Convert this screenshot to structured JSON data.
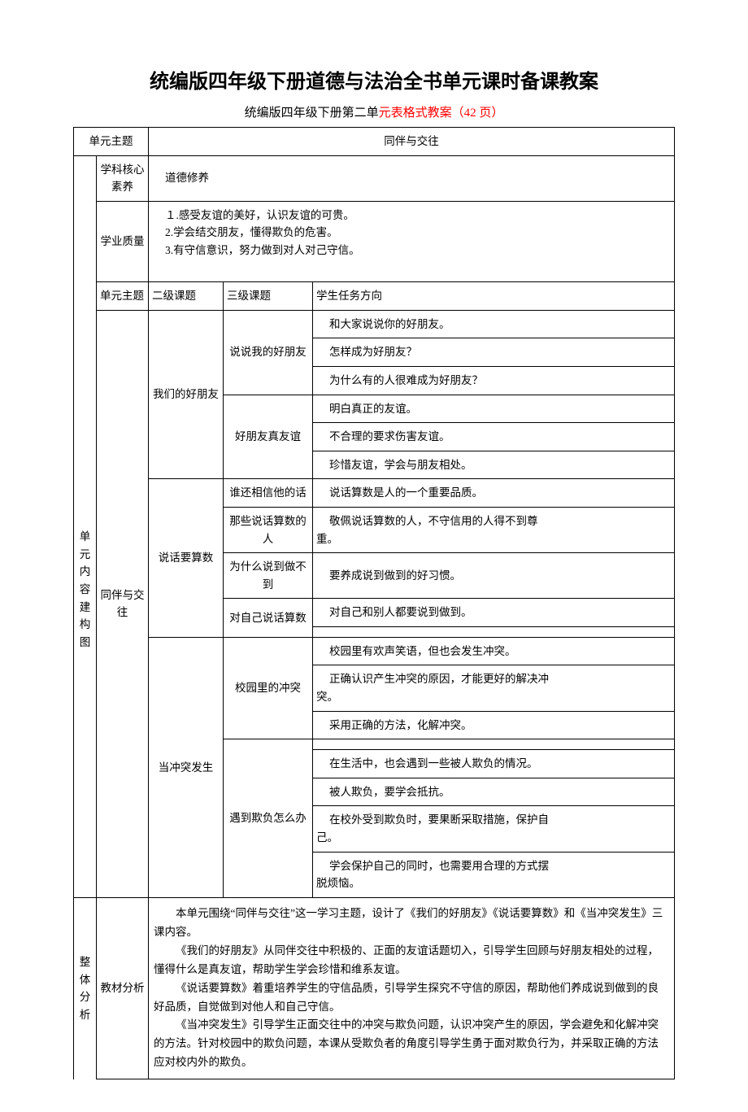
{
  "title": "统编版四年级下册道德与法治全书单元课时备课教案",
  "subtitle_prefix": "统编版四年级下册第二单",
  "subtitle_red": "元表格式教案（42 页）",
  "labels": {
    "unit_theme": "单元主题",
    "core_competency": "学科核心素养",
    "academic_quality": "学业质量",
    "unit_content_map": "单元内容建构图",
    "secondary_topic": "二级课题",
    "tertiary_topic": "三级课题",
    "student_task": "学生任务方向",
    "overall_analysis": "整体分析",
    "material_analysis": "教材分析"
  },
  "unit_theme_value": "同伴与交往",
  "core_competency_value": "道德修养",
  "academic_quality_items": [
    "１.感受友谊的美好，认识友谊的可贵。",
    "2.学会结交朋友，懂得欺负的危害。",
    "3.有守信意识，努力做到对人对己守信。"
  ],
  "secondary1": "我们的好朋友",
  "tertiary1a": "说说我的好朋友",
  "tertiary1b": "好朋友真友谊",
  "tasks1a": [
    "和大家说说你的好朋友。",
    "怎样成为好朋友？",
    "为什么有的人很难成为好朋友？"
  ],
  "tasks1b": [
    "明白真正的友谊。",
    "不合理的要求伤害友谊。",
    "珍惜友谊，学会与朋友相处。"
  ],
  "secondary2": "说话要算数",
  "tertiary2a": "谁还相信他的话",
  "tertiary2b": "那些说话算数的人",
  "tertiary2c": "为什么说到做不到",
  "tertiary2d": "对自己说话算数",
  "task2a": "说话算数是人的一个重要品质。",
  "task2b_prefix": "敬佩说话算数的人，不守信用的人得不到尊",
  "task2b_suffix": "重。",
  "task2c": "要养成说到做到的好习惯。",
  "task2d": "对自己和别人都要说到做到。",
  "secondary3": "当冲突发生",
  "tertiary3a": "校园里的冲突",
  "tertiary3b": "遇到欺负怎么办",
  "task3a1": "校园里有欢声笑语，但也会发生冲突。",
  "task3a2_prefix": "正确认识产生冲突的原因，才能更好的解决冲",
  "task3a2_suffix": "突。",
  "task3a3": "采用正确的方法，化解冲突。",
  "task3b1": "在生活中，也会遇到一些被人欺负的情况。",
  "task3b2": "被人欺负，要学会抵抗。",
  "task3b3_prefix": "在校外受到欺负时，要果断采取措施，保护自",
  "task3b3_suffix": "己。",
  "task3b4_prefix": "学会保护自己的同时，也需要用合理的方式摆",
  "task3b4_suffix": "脱烦恼。",
  "analysis_p1": "本单元围绕“同伴与交往”这一学习主题，设计了《我们的好朋友》《说话要算数》和《当冲突发生》三课内容。",
  "analysis_p2": "《我们的好朋友》从同伴交往中积极的、正面的友谊话题切入，引导学生回顾与好朋友相处的过程，懂得什么是真友谊，帮助学生学会珍惜和维系友谊。",
  "analysis_p3": "《说话要算数》着重培养学生的守信品质，引导学生探究不守信的原因，帮助他们养成说到做到的良好品质，自觉做到对他人和自己守信。",
  "analysis_p4": "《当冲突发生》引导学生正面交往中的冲突与欺负问题，认识冲突产生的原因，学会避免和化解冲突的方法。针对校园中的欺负问题，本课从受欺负者的角度引导学生勇于面对欺负行为，并采取正确的方法应对校内外的欺负。"
}
